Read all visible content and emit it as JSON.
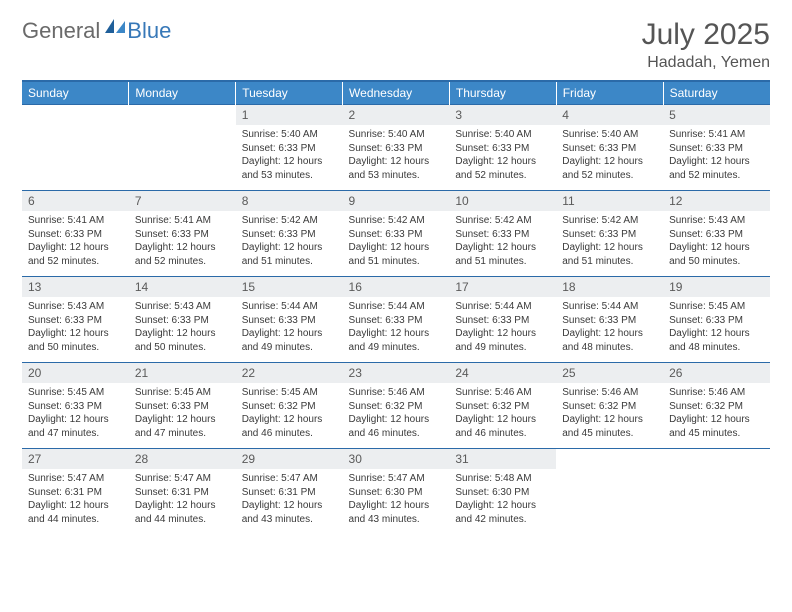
{
  "logo": {
    "part1": "General",
    "part2": "Blue"
  },
  "title": "July 2025",
  "location": "Hadadah, Yemen",
  "colors": {
    "header_bg": "#3c87c7",
    "header_text": "#ffffff",
    "border": "#2b6aa8",
    "daynum_bg": "#eceef0",
    "text": "#3a3a3a",
    "logo_gray": "#6a6a6a",
    "logo_blue": "#3778b8"
  },
  "weekdays": [
    "Sunday",
    "Monday",
    "Tuesday",
    "Wednesday",
    "Thursday",
    "Friday",
    "Saturday"
  ],
  "weeks": [
    {
      "nums": [
        "",
        "",
        "1",
        "2",
        "3",
        "4",
        "5"
      ],
      "cells": [
        "",
        "",
        "Sunrise: 5:40 AM\nSunset: 6:33 PM\nDaylight: 12 hours and 53 minutes.",
        "Sunrise: 5:40 AM\nSunset: 6:33 PM\nDaylight: 12 hours and 53 minutes.",
        "Sunrise: 5:40 AM\nSunset: 6:33 PM\nDaylight: 12 hours and 52 minutes.",
        "Sunrise: 5:40 AM\nSunset: 6:33 PM\nDaylight: 12 hours and 52 minutes.",
        "Sunrise: 5:41 AM\nSunset: 6:33 PM\nDaylight: 12 hours and 52 minutes."
      ]
    },
    {
      "nums": [
        "6",
        "7",
        "8",
        "9",
        "10",
        "11",
        "12"
      ],
      "cells": [
        "Sunrise: 5:41 AM\nSunset: 6:33 PM\nDaylight: 12 hours and 52 minutes.",
        "Sunrise: 5:41 AM\nSunset: 6:33 PM\nDaylight: 12 hours and 52 minutes.",
        "Sunrise: 5:42 AM\nSunset: 6:33 PM\nDaylight: 12 hours and 51 minutes.",
        "Sunrise: 5:42 AM\nSunset: 6:33 PM\nDaylight: 12 hours and 51 minutes.",
        "Sunrise: 5:42 AM\nSunset: 6:33 PM\nDaylight: 12 hours and 51 minutes.",
        "Sunrise: 5:42 AM\nSunset: 6:33 PM\nDaylight: 12 hours and 51 minutes.",
        "Sunrise: 5:43 AM\nSunset: 6:33 PM\nDaylight: 12 hours and 50 minutes."
      ]
    },
    {
      "nums": [
        "13",
        "14",
        "15",
        "16",
        "17",
        "18",
        "19"
      ],
      "cells": [
        "Sunrise: 5:43 AM\nSunset: 6:33 PM\nDaylight: 12 hours and 50 minutes.",
        "Sunrise: 5:43 AM\nSunset: 6:33 PM\nDaylight: 12 hours and 50 minutes.",
        "Sunrise: 5:44 AM\nSunset: 6:33 PM\nDaylight: 12 hours and 49 minutes.",
        "Sunrise: 5:44 AM\nSunset: 6:33 PM\nDaylight: 12 hours and 49 minutes.",
        "Sunrise: 5:44 AM\nSunset: 6:33 PM\nDaylight: 12 hours and 49 minutes.",
        "Sunrise: 5:44 AM\nSunset: 6:33 PM\nDaylight: 12 hours and 48 minutes.",
        "Sunrise: 5:45 AM\nSunset: 6:33 PM\nDaylight: 12 hours and 48 minutes."
      ]
    },
    {
      "nums": [
        "20",
        "21",
        "22",
        "23",
        "24",
        "25",
        "26"
      ],
      "cells": [
        "Sunrise: 5:45 AM\nSunset: 6:33 PM\nDaylight: 12 hours and 47 minutes.",
        "Sunrise: 5:45 AM\nSunset: 6:33 PM\nDaylight: 12 hours and 47 minutes.",
        "Sunrise: 5:45 AM\nSunset: 6:32 PM\nDaylight: 12 hours and 46 minutes.",
        "Sunrise: 5:46 AM\nSunset: 6:32 PM\nDaylight: 12 hours and 46 minutes.",
        "Sunrise: 5:46 AM\nSunset: 6:32 PM\nDaylight: 12 hours and 46 minutes.",
        "Sunrise: 5:46 AM\nSunset: 6:32 PM\nDaylight: 12 hours and 45 minutes.",
        "Sunrise: 5:46 AM\nSunset: 6:32 PM\nDaylight: 12 hours and 45 minutes."
      ]
    },
    {
      "nums": [
        "27",
        "28",
        "29",
        "30",
        "31",
        "",
        ""
      ],
      "cells": [
        "Sunrise: 5:47 AM\nSunset: 6:31 PM\nDaylight: 12 hours and 44 minutes.",
        "Sunrise: 5:47 AM\nSunset: 6:31 PM\nDaylight: 12 hours and 44 minutes.",
        "Sunrise: 5:47 AM\nSunset: 6:31 PM\nDaylight: 12 hours and 43 minutes.",
        "Sunrise: 5:47 AM\nSunset: 6:30 PM\nDaylight: 12 hours and 43 minutes.",
        "Sunrise: 5:48 AM\nSunset: 6:30 PM\nDaylight: 12 hours and 42 minutes.",
        "",
        ""
      ]
    }
  ]
}
